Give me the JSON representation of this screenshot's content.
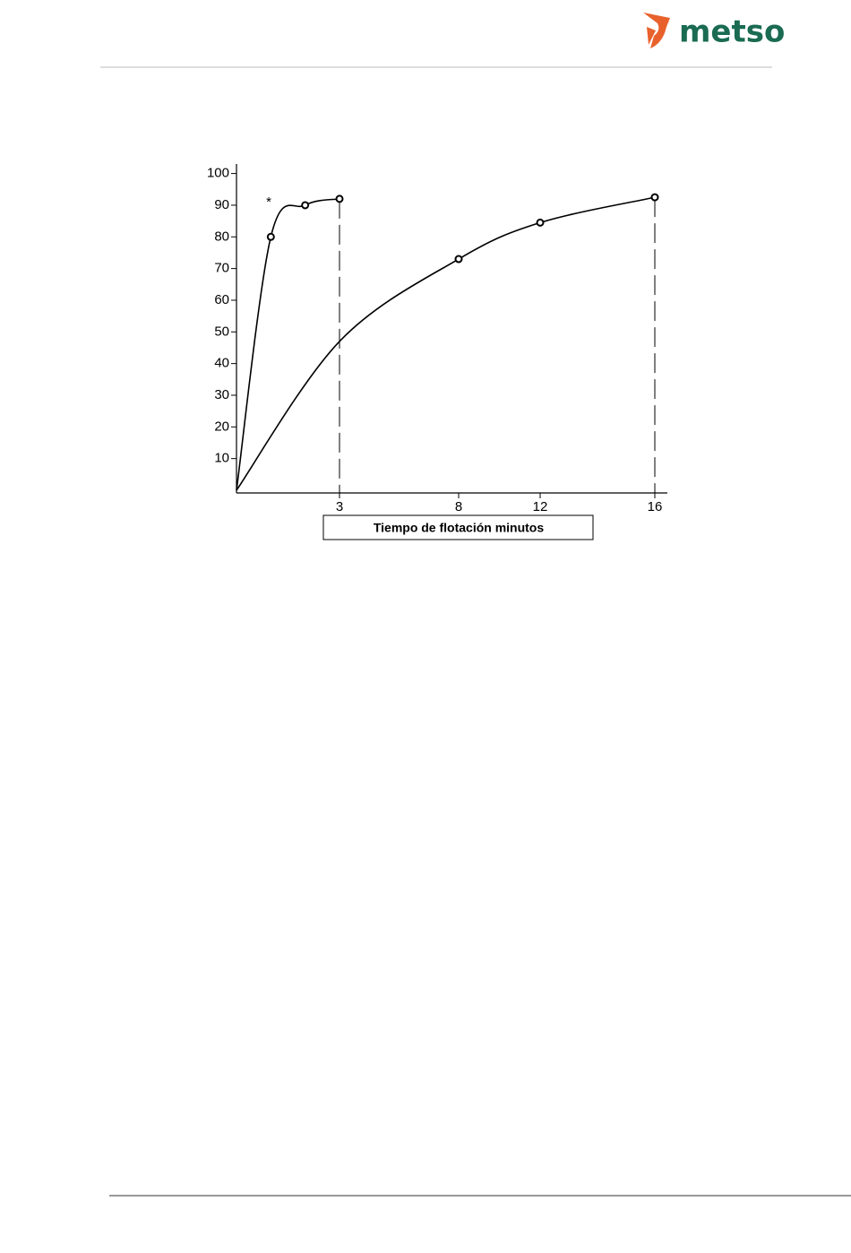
{
  "header": {
    "logo": "metso"
  },
  "chart_data": {
    "type": "line",
    "x_label": "Tiempo de flotación minutos",
    "annotations": [
      "*"
    ],
    "series": [
      {
        "x": [
          0,
          1,
          2,
          3
        ],
        "values": [
          0,
          80,
          90,
          92
        ],
        "color": "#000000",
        "markers": [
          false,
          true,
          true,
          true
        ],
        "drop_line": true
      },
      {
        "x": [
          0,
          3,
          8,
          12,
          16
        ],
        "values": [
          0,
          47,
          73,
          84.5,
          92.5
        ],
        "color": "#000000",
        "markers": [
          false,
          false,
          true,
          true,
          true
        ],
        "drop_line": true
      }
    ],
    "xlim": [
      0,
      16.4
    ],
    "xticks": [
      3,
      8,
      12,
      16
    ],
    "ylim": [
      0,
      103
    ],
    "yticks": [
      10,
      20,
      30,
      40,
      50,
      60,
      70,
      80,
      90,
      100
    ],
    "grid": false
  }
}
